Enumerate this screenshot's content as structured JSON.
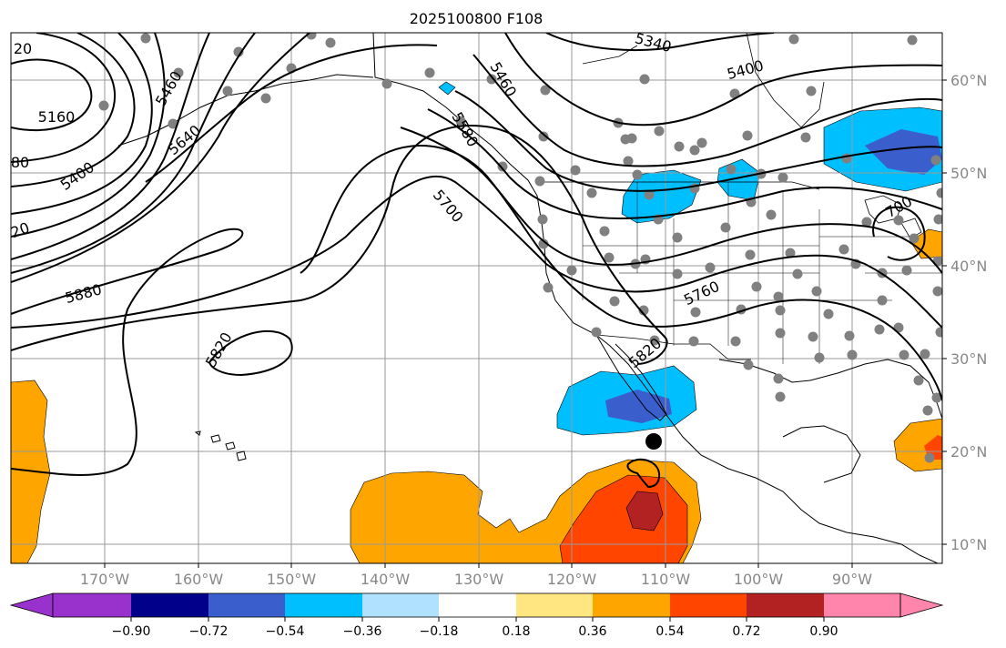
{
  "title": "2025100800 F108",
  "colors": {
    "warm_light": "#ffe680",
    "warm_mid": "#ffa500",
    "warm_strong": "#ff4500",
    "warm_deep": "#b22222",
    "cool_light": "#00bfff",
    "cool_mid": "#3a5fcd",
    "station": "#808080",
    "contour": "#000000"
  },
  "lat_labels": [
    "60°N",
    "50°N",
    "40°N",
    "30°N",
    "20°N",
    "10°N"
  ],
  "lon_labels": [
    "170°W",
    "160°W",
    "150°W",
    "140°W",
    "130°W",
    "120°W",
    "110°W",
    "100°W",
    "90°W"
  ],
  "contour_labels": [
    {
      "text": "5160"
    },
    {
      "text": "5400"
    },
    {
      "text": "5460"
    },
    {
      "text": "5640"
    },
    {
      "text": "5880"
    },
    {
      "text": "5820"
    },
    {
      "text": "5700"
    },
    {
      "text": "5580"
    },
    {
      "text": "5460"
    },
    {
      "text": "5340"
    },
    {
      "text": "5400"
    },
    {
      "text": "5760"
    },
    {
      "text": "5820"
    },
    {
      "text": "20"
    },
    {
      "text": "80"
    },
    {
      "text": "20"
    },
    {
      "text": "700"
    }
  ],
  "colorbar": {
    "colors": [
      "#9932cc",
      "#00008b",
      "#3a5fcd",
      "#00bfff",
      "#b0e2ff",
      "#ffffff",
      "#ffe680",
      "#ffa500",
      "#ff4500",
      "#b22222",
      "#ff85ac"
    ],
    "tick_labels": [
      "−0.90",
      "−0.72",
      "−0.54",
      "−0.36",
      "−0.18",
      "0.18",
      "0.36",
      "0.54",
      "0.72",
      "0.90"
    ]
  }
}
